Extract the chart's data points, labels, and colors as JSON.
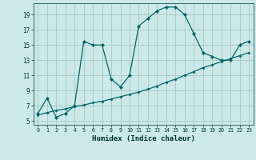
{
  "xlabel": "Humidex (Indice chaleur)",
  "bg_color": "#cce8e8",
  "grid_color": "#aacccc",
  "line_color": "#006666",
  "xlim": [
    -0.5,
    23.5
  ],
  "ylim": [
    4.5,
    20.5
  ],
  "xticks": [
    0,
    1,
    2,
    3,
    4,
    5,
    6,
    7,
    8,
    9,
    10,
    11,
    12,
    13,
    14,
    15,
    16,
    17,
    18,
    19,
    20,
    21,
    22,
    23
  ],
  "yticks": [
    5,
    7,
    9,
    11,
    13,
    15,
    17,
    19
  ],
  "line1_x": [
    0,
    1,
    2,
    3,
    4,
    5,
    6,
    7,
    8,
    9,
    10,
    11,
    12,
    13,
    14,
    15,
    16,
    17,
    18,
    19,
    20,
    21,
    22,
    23
  ],
  "line1_y": [
    6.0,
    8.0,
    5.5,
    6.0,
    7.0,
    15.5,
    15.0,
    15.0,
    10.5,
    9.5,
    11.0,
    17.5,
    18.5,
    19.5,
    20.0,
    20.0,
    19.0,
    16.5,
    14.0,
    13.5,
    13.0,
    13.0,
    15.0,
    15.5
  ],
  "line2_x": [
    0,
    1,
    2,
    3,
    4,
    5,
    6,
    7,
    8,
    9,
    10,
    11,
    12,
    13,
    14,
    15,
    16,
    17,
    18,
    19,
    20,
    21,
    22,
    23
  ],
  "line2_y": [
    5.8,
    6.1,
    6.4,
    6.6,
    6.9,
    7.1,
    7.4,
    7.6,
    7.9,
    8.2,
    8.5,
    8.8,
    9.2,
    9.6,
    10.1,
    10.5,
    11.0,
    11.5,
    12.0,
    12.4,
    12.8,
    13.2,
    13.6,
    14.0
  ]
}
